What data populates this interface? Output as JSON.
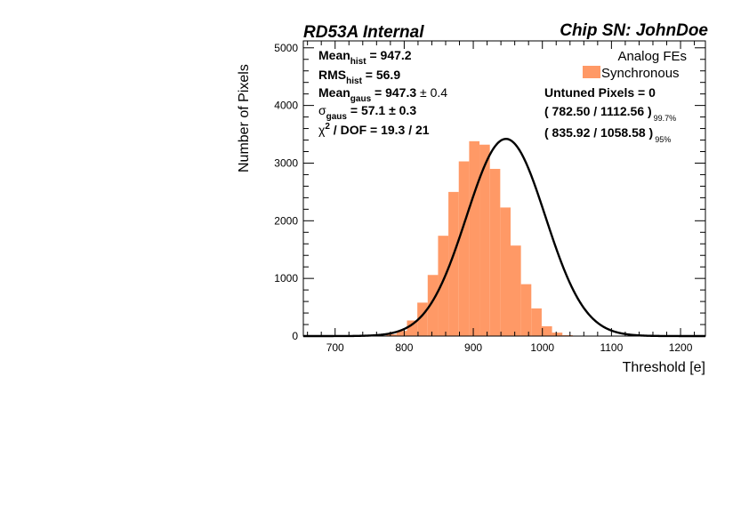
{
  "header": {
    "left": "RD53A Internal",
    "right": "Chip SN: JohnDoe"
  },
  "chart_data": {
    "type": "bar",
    "xlabel": "Threshold [e]",
    "ylabel": "Number of Pixels",
    "xlim": [
      654,
      1236
    ],
    "ylim": [
      0,
      5120
    ],
    "xticks": [
      "700",
      "800",
      "900",
      "1000",
      "1100",
      "1200"
    ],
    "yticks": [
      "0",
      "1000",
      "2000",
      "3000",
      "4000",
      "5000"
    ],
    "bin_width": 15,
    "bins_start": 654,
    "values": [
      0,
      0,
      0,
      0,
      0,
      0,
      0,
      0,
      30,
      90,
      270,
      580,
      1060,
      1740,
      2500,
      3030,
      3380,
      3320,
      2900,
      2230,
      1570,
      900,
      480,
      170,
      60,
      15,
      0,
      0,
      0,
      0,
      0,
      0,
      0,
      0,
      0,
      0,
      0,
      0,
      0
    ],
    "fit": {
      "type": "gaussian",
      "mean": 947.3,
      "sigma": 57.1,
      "amplitude": 3420
    },
    "bar_color": "#ff9966",
    "fit_color": "#000000",
    "legend": {
      "title": "Analog FEs",
      "entries": [
        "Synchronous"
      ],
      "position": "top-right"
    }
  },
  "stats": {
    "mean_hist": {
      "label": "Mean",
      "sub": "hist",
      "value": " = 947.2"
    },
    "rms_hist": {
      "label": "RMS",
      "sub": "hist",
      "value": " = 56.9"
    },
    "mean_gaus": {
      "label": "Mean",
      "sub": "gaus",
      "value": " = 947.3",
      "err": " ± 0.4"
    },
    "sigma_gaus": {
      "label": "σ",
      "sub": "gaus",
      "value": " = 57.1 ± 0.3"
    },
    "chi2": {
      "label": "χ",
      "sup": "2",
      "value": " / DOF = 19.3 / 21"
    },
    "untuned": "Untuned Pixels = 0",
    "range997": {
      "value": "( 782.50 / 1112.56 )",
      "sub": "99.7%"
    },
    "range95": {
      "value": "( 835.92 / 1058.58 )",
      "sub": "95%"
    }
  }
}
